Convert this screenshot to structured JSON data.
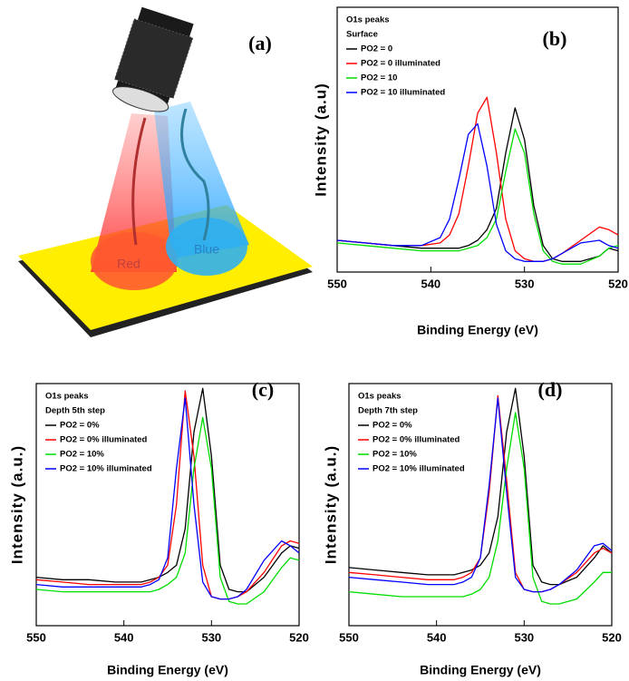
{
  "illustration": {
    "label": "(a)",
    "spots": [
      "Red",
      "Blue"
    ]
  },
  "chart_data": [
    {
      "type": "line",
      "panel_label": "(b)",
      "annotations": [
        "O1s peaks",
        "Surface"
      ],
      "xlabel": "Binding Energy (eV)",
      "ylabel": "Intensity (a.u)",
      "xlim": [
        550,
        520
      ],
      "xticks": [
        550,
        540,
        530,
        520
      ],
      "ylim": [
        0,
        100
      ],
      "x": [
        550,
        547,
        544,
        541,
        539,
        538,
        537,
        536,
        535,
        534,
        533,
        532,
        531,
        530,
        529,
        528,
        527,
        526,
        524,
        522,
        521,
        520
      ],
      "series": [
        {
          "name": "PO2 = 0",
          "color": "#000000",
          "values": [
            12,
            11,
            10,
            9,
            9,
            9,
            9,
            10,
            12,
            16,
            24,
            45,
            62,
            50,
            25,
            10,
            5,
            4,
            4,
            6,
            9,
            8
          ]
        },
        {
          "name": "PO2 = 0 illuminated",
          "color": "#ff0000",
          "values": [
            12,
            11,
            10,
            10,
            11,
            14,
            22,
            40,
            60,
            66,
            45,
            20,
            8,
            5,
            4,
            4,
            5,
            7,
            12,
            17,
            16,
            14
          ]
        },
        {
          "name": "PO2 = 10",
          "color": "#00dd00",
          "values": [
            11,
            10,
            9,
            8,
            8,
            8,
            8,
            9,
            10,
            13,
            20,
            38,
            54,
            45,
            22,
            8,
            4,
            3,
            3,
            6,
            9,
            10
          ]
        },
        {
          "name": "PO2 = 10 illuminated",
          "color": "#0000ff",
          "values": [
            12,
            11,
            10,
            10,
            13,
            20,
            35,
            52,
            56,
            40,
            18,
            8,
            5,
            4,
            4,
            4,
            5,
            7,
            11,
            12,
            10,
            9
          ]
        }
      ]
    },
    {
      "type": "line",
      "panel_label": "(c)",
      "annotations": [
        "O1s peaks",
        "Depth 5th step"
      ],
      "xlabel": "Binding Energy (eV)",
      "ylabel": "Intensity (a.u.)",
      "xlim": [
        550,
        520
      ],
      "xticks": [
        550,
        540,
        530,
        520
      ],
      "ylim": [
        0,
        100
      ],
      "x": [
        550,
        547,
        544,
        541,
        539,
        538,
        537,
        536,
        535,
        534,
        533,
        532,
        531,
        530,
        529,
        528,
        527,
        526,
        524,
        522,
        521,
        520
      ],
      "series": [
        {
          "name": "PO2 = 0%",
          "color": "#000000",
          "values": [
            20,
            19,
            19,
            18,
            18,
            18,
            19,
            20,
            22,
            25,
            40,
            80,
            98,
            70,
            25,
            15,
            14,
            14,
            20,
            30,
            33,
            32
          ]
        },
        {
          "name": "PO2 = 0%  illuminated",
          "color": "#ff0000",
          "values": [
            19,
            18,
            17,
            17,
            17,
            17,
            18,
            20,
            25,
            50,
            97,
            70,
            25,
            12,
            11,
            11,
            12,
            14,
            22,
            33,
            35,
            34
          ]
        },
        {
          "name": "PO2 = 10%",
          "color": "#00dd00",
          "values": [
            15,
            14,
            14,
            14,
            14,
            14,
            14,
            15,
            17,
            20,
            30,
            65,
            86,
            65,
            20,
            10,
            9,
            9,
            14,
            24,
            28,
            27
          ]
        },
        {
          "name": "PO2 = 10% illuminated",
          "color": "#0000ff",
          "values": [
            17,
            16,
            16,
            16,
            16,
            16,
            17,
            19,
            28,
            65,
            94,
            50,
            18,
            12,
            11,
            11,
            12,
            15,
            27,
            35,
            33,
            30
          ]
        }
      ]
    },
    {
      "type": "line",
      "panel_label": "(d)",
      "annotations": [
        "O1s peaks",
        "Depth 7th step"
      ],
      "xlabel": "Binding Energy (eV)",
      "ylabel": "Intensity (a.u.)",
      "xlim": [
        550,
        520
      ],
      "xticks": [
        550,
        540,
        530,
        520
      ],
      "ylim": [
        0,
        100
      ],
      "x": [
        550,
        547,
        544,
        541,
        539,
        538,
        537,
        536,
        535,
        534,
        533,
        532,
        531,
        530,
        529,
        528,
        527,
        526,
        524,
        522,
        521,
        520
      ],
      "series": [
        {
          "name": "PO2 = 0%",
          "color": "#000000",
          "values": [
            24,
            23,
            22,
            21,
            21,
            21,
            22,
            23,
            25,
            30,
            45,
            80,
            98,
            70,
            25,
            18,
            17,
            17,
            20,
            28,
            33,
            30
          ]
        },
        {
          "name": "PO2 = 0%  illuminated",
          "color": "#ff0000",
          "values": [
            22,
            21,
            20,
            19,
            19,
            19,
            20,
            22,
            28,
            55,
            95,
            60,
            22,
            15,
            14,
            14,
            15,
            17,
            22,
            30,
            32,
            30
          ]
        },
        {
          "name": "PO2 = 10%",
          "color": "#00dd00",
          "values": [
            14,
            13,
            12,
            12,
            12,
            12,
            12,
            13,
            15,
            20,
            35,
            65,
            88,
            65,
            20,
            10,
            9,
            9,
            11,
            18,
            22,
            22
          ]
        },
        {
          "name": "PO2 = 10% illuminated",
          "color": "#0000ff",
          "values": [
            20,
            19,
            18,
            17,
            17,
            17,
            18,
            20,
            28,
            58,
            94,
            55,
            20,
            15,
            14,
            14,
            15,
            17,
            23,
            33,
            34,
            31
          ]
        }
      ]
    }
  ]
}
